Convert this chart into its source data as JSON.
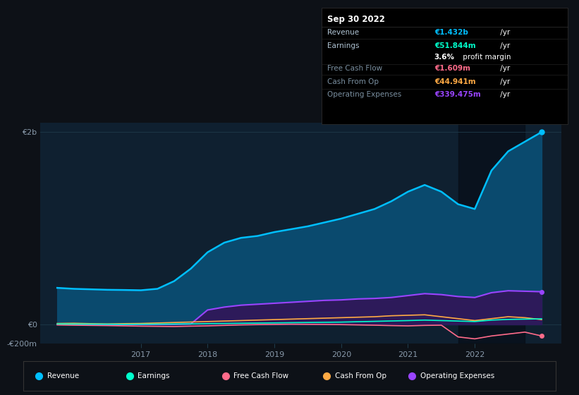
{
  "bg_color": "#0d1117",
  "chart_bg_color": "#0f2030",
  "grid_color": "#1e3a4a",
  "text_color": "#8899aa",
  "xlim": [
    2015.5,
    2023.3
  ],
  "ylim": [
    -200,
    2100
  ],
  "yticks": [
    -200,
    0,
    2000
  ],
  "ytick_labels": [
    "-€200m",
    "€0",
    "€2b"
  ],
  "x_years": [
    2015.75,
    2016.0,
    2016.25,
    2016.5,
    2016.75,
    2017.0,
    2017.25,
    2017.5,
    2017.75,
    2018.0,
    2018.25,
    2018.5,
    2018.75,
    2019.0,
    2019.25,
    2019.5,
    2019.75,
    2020.0,
    2020.25,
    2020.5,
    2020.75,
    2021.0,
    2021.25,
    2021.5,
    2021.75,
    2022.0,
    2022.25,
    2022.5,
    2022.75,
    2023.0
  ],
  "revenue": [
    380,
    370,
    365,
    360,
    358,
    355,
    370,
    450,
    580,
    750,
    850,
    900,
    920,
    960,
    990,
    1020,
    1060,
    1100,
    1150,
    1200,
    1280,
    1380,
    1450,
    1380,
    1250,
    1200,
    1600,
    1800,
    1900,
    2000
  ],
  "earnings": [
    5,
    4,
    3,
    2,
    1,
    2,
    3,
    4,
    5,
    8,
    10,
    12,
    14,
    16,
    18,
    20,
    22,
    24,
    28,
    32,
    36,
    40,
    45,
    40,
    35,
    30,
    45,
    52,
    55,
    58
  ],
  "free_cash_flow": [
    -5,
    -8,
    -10,
    -12,
    -15,
    -18,
    -20,
    -22,
    -18,
    -15,
    -10,
    -5,
    -2,
    0,
    2,
    1,
    0,
    -2,
    -5,
    -8,
    -12,
    -15,
    -10,
    -8,
    -130,
    -150,
    -120,
    -100,
    -80,
    -120
  ],
  "cash_from_op": [
    10,
    12,
    8,
    5,
    8,
    10,
    15,
    20,
    25,
    30,
    35,
    40,
    45,
    50,
    55,
    60,
    65,
    70,
    75,
    80,
    90,
    95,
    100,
    80,
    60,
    40,
    60,
    80,
    70,
    50
  ],
  "operating_expenses": [
    0,
    0,
    0,
    0,
    0,
    0,
    0,
    0,
    5,
    150,
    180,
    200,
    210,
    220,
    230,
    240,
    250,
    255,
    265,
    270,
    280,
    300,
    320,
    310,
    290,
    280,
    330,
    350,
    345,
    340
  ],
  "revenue_color": "#00bfff",
  "earnings_color": "#00ffcc",
  "free_cash_flow_color": "#ff6b8a",
  "cash_from_op_color": "#ffaa44",
  "operating_expenses_color": "#9944ff",
  "revenue_fill": "#0a4a6e",
  "operating_fill": "#2d1a5a",
  "highlight_x_start": 2021.75,
  "highlight_x_end": 2022.75,
  "info_box": {
    "title": "Sep 30 2022",
    "rows": [
      {
        "label": "Revenue",
        "value": "€1.432b",
        "value_color": "#00bfff",
        "label_dim": false
      },
      {
        "label": "Earnings",
        "value": "€51.844m",
        "value_color": "#00ffcc",
        "label_dim": false
      },
      {
        "label": "",
        "value": "3.6% profit margin",
        "value_color": "#ffffff",
        "label_dim": false
      },
      {
        "label": "Free Cash Flow",
        "value": "€1.609m",
        "value_color": "#ff6b8a",
        "label_dim": true
      },
      {
        "label": "Cash From Op",
        "value": "€44.941m",
        "value_color": "#ffaa44",
        "label_dim": true
      },
      {
        "label": "Operating Expenses",
        "value": "€339.475m",
        "value_color": "#9944ff",
        "label_dim": true
      }
    ]
  },
  "legend_items": [
    {
      "label": "Revenue",
      "color": "#00bfff"
    },
    {
      "label": "Earnings",
      "color": "#00ffcc"
    },
    {
      "label": "Free Cash Flow",
      "color": "#ff6b8a"
    },
    {
      "label": "Cash From Op",
      "color": "#ffaa44"
    },
    {
      "label": "Operating Expenses",
      "color": "#9944ff"
    }
  ],
  "xtick_years": [
    2017,
    2018,
    2019,
    2020,
    2021,
    2022
  ]
}
